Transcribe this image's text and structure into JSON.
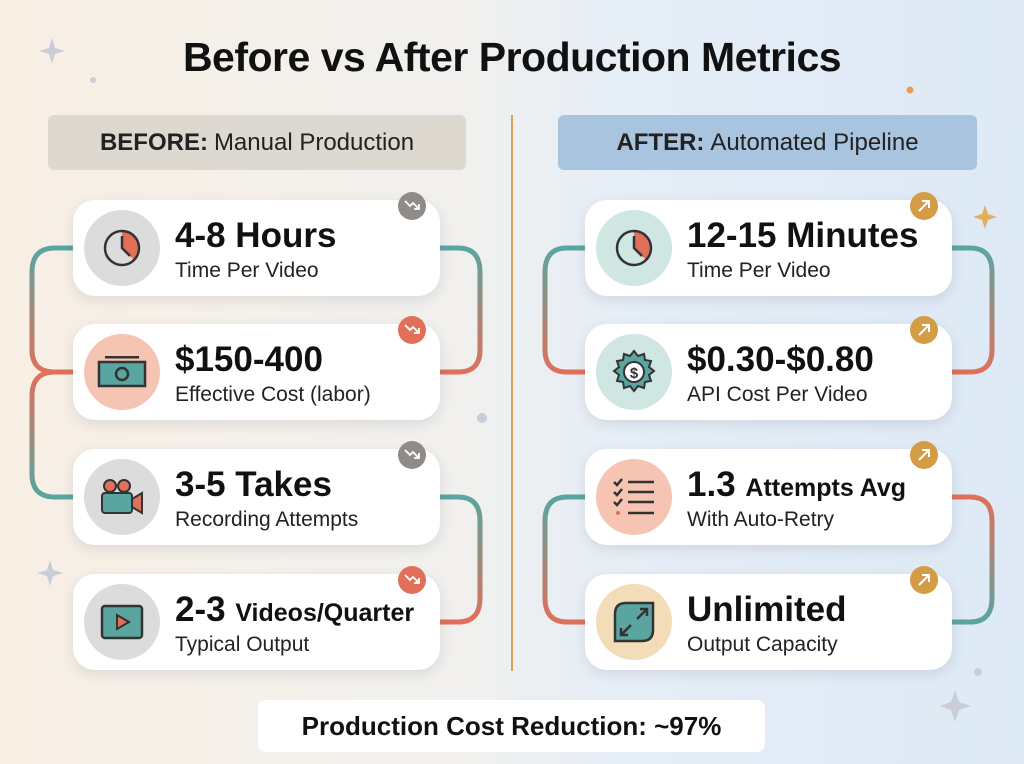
{
  "title": "Before vs After Production Metrics",
  "before": {
    "header_bold": "BEFORE:",
    "header_rest": "Manual Production",
    "cards": [
      {
        "value": "4-8 Hours",
        "unit": "",
        "label": "Time Per Video",
        "icon": "clock-icon",
        "trend": "down",
        "badge_color": "#8f8b88"
      },
      {
        "value": "$150-400",
        "unit": "",
        "label": "Effective Cost (labor)",
        "icon": "money-icon",
        "trend": "down",
        "badge_color": "#e0705a"
      },
      {
        "value": "3-5 Takes",
        "unit": "",
        "label": "Recording Attempts",
        "icon": "camera-icon",
        "trend": "down",
        "badge_color": "#8f8b88"
      },
      {
        "value": "2-3",
        "unit": "Videos/Quarter",
        "label": "Typical Output",
        "icon": "play-icon",
        "trend": "down",
        "badge_color": "#e0705a"
      }
    ]
  },
  "after": {
    "header_bold": "AFTER:",
    "header_rest": "Automated Pipeline",
    "cards": [
      {
        "value": "12-15 Minutes",
        "unit": "",
        "label": "Time Per Video",
        "icon": "clock-icon",
        "trend": "up",
        "badge_color": "#d39c45"
      },
      {
        "value": "$0.30-$0.80",
        "unit": "",
        "label": "API Cost Per Video",
        "icon": "gear-dollar-icon",
        "trend": "up",
        "badge_color": "#d39c45"
      },
      {
        "value": "1.3",
        "unit": "Attempts Avg",
        "label": "With Auto-Retry",
        "icon": "checklist-icon",
        "trend": "up",
        "badge_color": "#d39c45"
      },
      {
        "value": "Unlimited",
        "unit": "",
        "label": "Output Capacity",
        "icon": "expand-icon",
        "trend": "up",
        "badge_color": "#d39c45"
      }
    ]
  },
  "footer": "Production Cost Reduction: ~97%",
  "colors": {
    "teal": "#5aa5a0",
    "coral": "#e0705a",
    "gold": "#d3a35c"
  }
}
